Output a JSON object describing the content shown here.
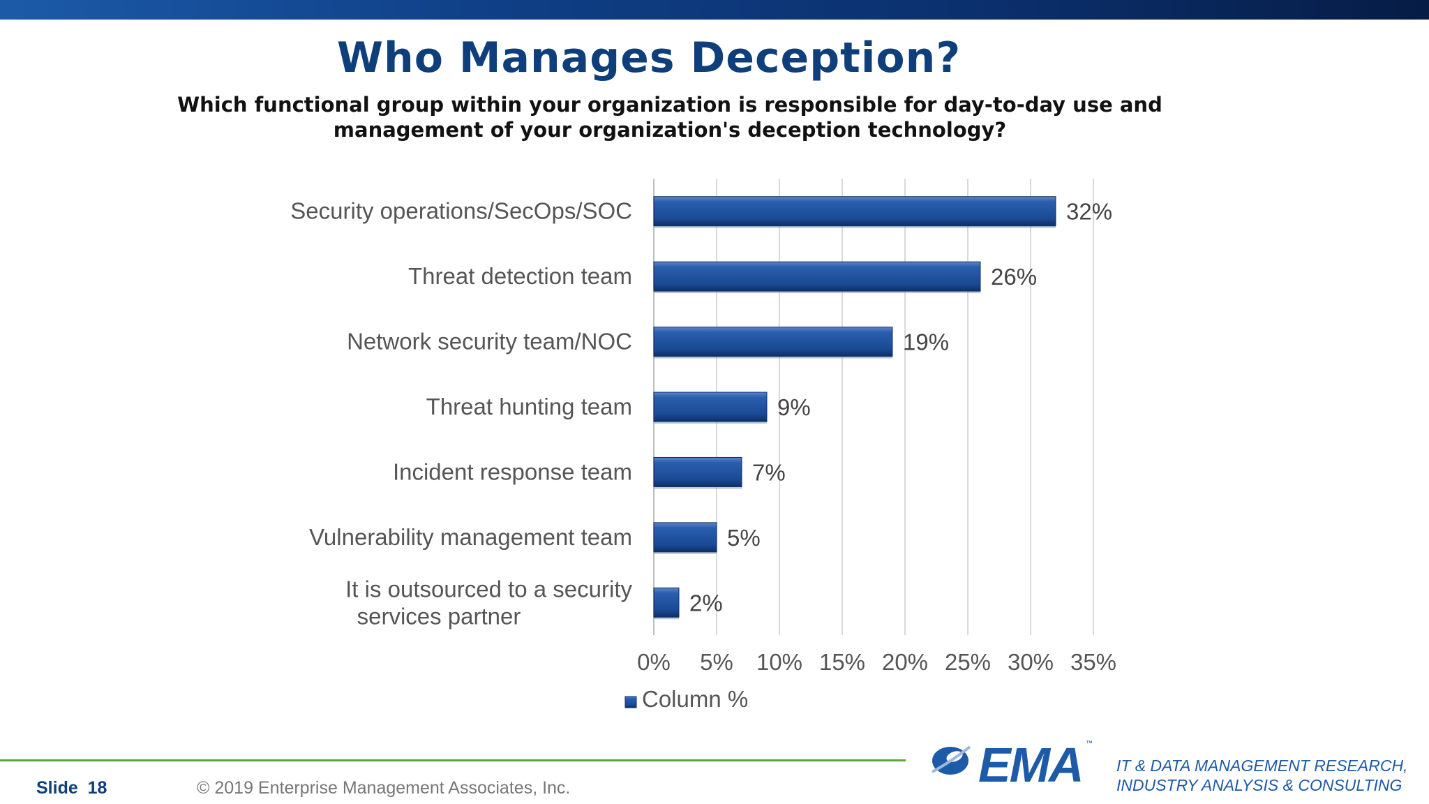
{
  "slide": {
    "title": "Who Manages Deception?",
    "subtitle": "Which functional group within your organization is responsible for day-to-day use and management of your organization's deception technology?",
    "slide_label": "Slide",
    "slide_number": "18",
    "copyright": "© 2019 Enterprise Management Associates, Inc.",
    "logo_text": "EMA",
    "tagline_line1": "IT & DATA MANAGEMENT RESEARCH,",
    "tagline_line2": "INDUSTRY ANALYSIS & CONSULTING",
    "band_color": "#0f3f86",
    "rule_color": "#5aa53a"
  },
  "chart_data": {
    "type": "bar",
    "orientation": "horizontal",
    "categories": [
      "Security operations/SecOps/SOC",
      "Threat detection team",
      "Network security team/NOC",
      "Threat hunting team",
      "Incident response team",
      "Vulnerability management team",
      "It is outsourced to a security services partner"
    ],
    "series": [
      {
        "name": "Column %",
        "values": [
          32,
          26,
          19,
          9,
          7,
          5,
          2
        ],
        "color": "#1d4f9a"
      }
    ],
    "data_labels": [
      "32%",
      "26%",
      "19%",
      "9%",
      "7%",
      "5%",
      "2%"
    ],
    "xlim": [
      0,
      35
    ],
    "x_ticks": [
      0,
      5,
      10,
      15,
      20,
      25,
      30,
      35
    ],
    "x_tick_labels": [
      "0%",
      "5%",
      "10%",
      "15%",
      "20%",
      "25%",
      "30%",
      "35%"
    ],
    "grid": "vertical",
    "legend": {
      "position": "bottom",
      "entries": [
        "Column %"
      ]
    }
  }
}
